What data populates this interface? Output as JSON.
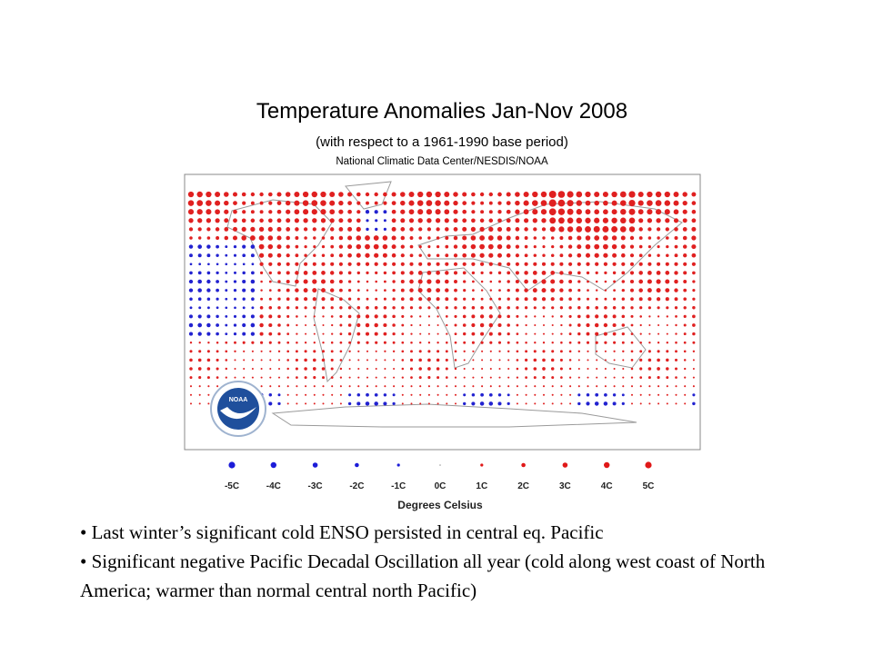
{
  "map": {
    "title": "Temperature Anomalies Jan-Nov 2008",
    "subtitle": "(with respect to a 1961-1990 base period)",
    "source": "National Climatic Data Center/NESDIS/NOAA",
    "logo": "NOAA",
    "legend": {
      "title": "Degrees Celsius",
      "items": [
        {
          "label": "-5C",
          "color": "#1c1cd8"
        },
        {
          "label": "-4C",
          "color": "#1c1cd8"
        },
        {
          "label": "-3C",
          "color": "#1c1cd8"
        },
        {
          "label": "-2C",
          "color": "#1c1cd8"
        },
        {
          "label": "-1C",
          "color": "#1c1cd8"
        },
        {
          "label": "0C",
          "color": "#999999"
        },
        {
          "label": "1C",
          "color": "#e01818"
        },
        {
          "label": "2C",
          "color": "#e01818"
        },
        {
          "label": "3C",
          "color": "#e01818"
        },
        {
          "label": "4C",
          "color": "#e01818"
        },
        {
          "label": "5C",
          "color": "#e01818"
        }
      ]
    }
  },
  "bullets": [
    "Last winter’s significant cold ENSO persisted in central  eq. Pacific",
    "Significant negative Pacific Decadal Oscillation all year (cold along west coast of North America; warmer than normal central north Pacific)"
  ]
}
